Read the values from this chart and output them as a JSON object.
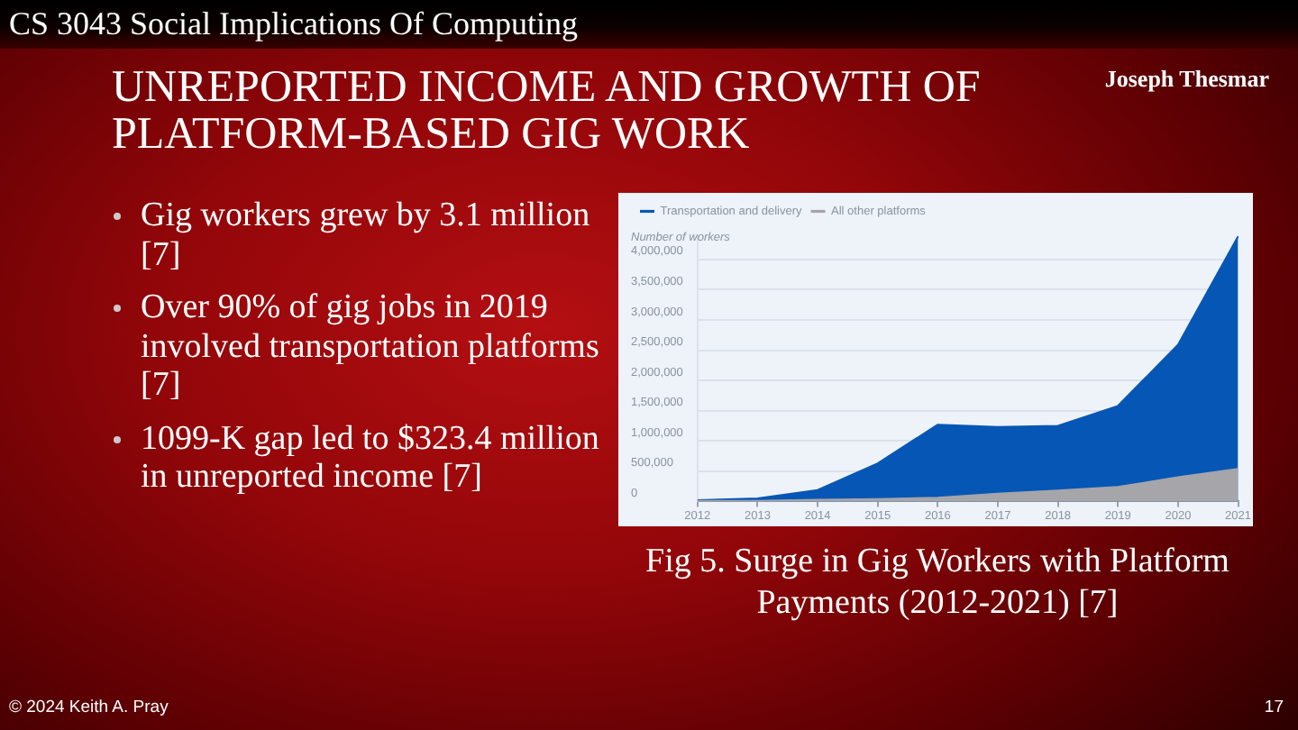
{
  "chart_data": {
    "type": "area",
    "title": "UNREPORTED INCOME AND GROWTH OF PLATFORM-BASED GIG WORK",
    "ylabel": "Number of workers",
    "categories": [
      "2012",
      "2013",
      "2014",
      "2015",
      "2016",
      "2017",
      "2018",
      "2019",
      "2020",
      "2021"
    ],
    "series": [
      {
        "name": "Transportation and delivery",
        "color": "#0657b5",
        "values": [
          20000,
          50000,
          190000,
          630000,
          1270000,
          1230000,
          1250000,
          1580000,
          2590000,
          4380000
        ]
      },
      {
        "name": "All other platforms",
        "color": "#a5a5aa",
        "values": [
          10000,
          10000,
          30000,
          40000,
          60000,
          130000,
          180000,
          240000,
          400000,
          540000
        ]
      }
    ],
    "ylim": [
      0,
      4400000
    ],
    "yticks": [
      0,
      {
        "value": 500000,
        "label": "500,000"
      },
      {
        "value": 1000000,
        "label": "1,000,000"
      },
      {
        "value": 1500000,
        "label": "1,500,000"
      },
      {
        "value": 2000000,
        "label": "2,000,000"
      },
      {
        "value": 2500000,
        "label": "2,500,000"
      },
      {
        "value": 3000000,
        "label": "3,000,000"
      },
      {
        "value": 3500000,
        "label": "3,500,000"
      },
      {
        "value": 4000000,
        "label": "4,000,000"
      }
    ],
    "grid": "y",
    "legend": "top left",
    "annotations": [
      "CS 3043 Social Implications Of Computing",
      "Joseph Thesmar",
      "Gig workers grew by 3.1 million [7]",
      "Over 90% of gig jobs in 2019 involved transportation platforms [7]",
      "1099-K gap led to $323.4 million in unreported income [7]",
      "Fig 5. Surge in Gig Workers with Platform Payments (2012-2021) [7]",
      "© 2024 Keith A. Pray",
      "17"
    ]
  }
}
